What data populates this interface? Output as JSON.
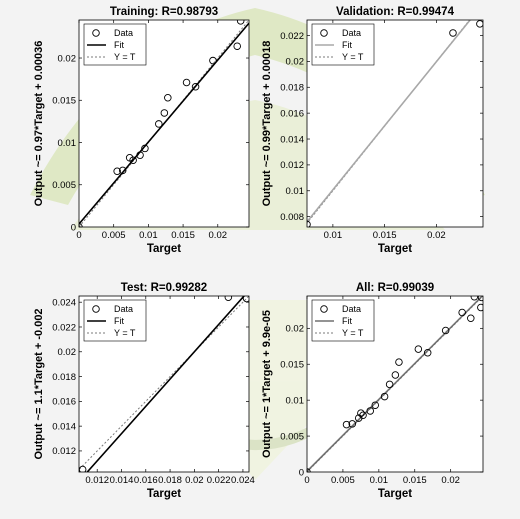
{
  "colors": {
    "figure_bg": "#f3f3f3",
    "axes_bg": "#ffffff",
    "data_marker": "#000000",
    "fit_training": "#000000",
    "fit_validation": "#a8a8a8",
    "fit_test": "#000000",
    "fit_all": "#707070",
    "identity_line": "#7a7a7a",
    "watermark": "#d9e6b8"
  },
  "chart_data": [
    {
      "type": "scatter",
      "title": "Training: R=0.98793",
      "xlabel": "Target",
      "ylabel": "Output ~= 0.97*Target + 0.00036",
      "fit": {
        "slope": 0.97,
        "intercept": 0.00036
      },
      "fit_color": "#000000",
      "xlim": [
        0,
        0.0245
      ],
      "ylim": [
        0,
        0.0245
      ],
      "xticks": [
        0,
        0.005,
        0.01,
        0.015,
        0.02
      ],
      "xtick_labels": [
        "0",
        "0.005",
        "0.01",
        "0.015",
        "0.02"
      ],
      "yticks": [
        0,
        0.005,
        0.01,
        0.015,
        0.02
      ],
      "ytick_labels": [
        "0",
        "0.005",
        "0.01",
        "0.015",
        "0.02"
      ],
      "legend": {
        "position": "top-left",
        "entries": [
          "Data",
          "Fit",
          "Y = T"
        ]
      },
      "grid": false,
      "series": [
        {
          "name": "Data",
          "points": [
            [
              0,
              0
            ],
            [
              0.0055,
              0.0066
            ],
            [
              0.0063,
              0.0067
            ],
            [
              0.0073,
              0.0082
            ],
            [
              0.0078,
              0.0079
            ],
            [
              0.0088,
              0.0085
            ],
            [
              0.0095,
              0.0093
            ],
            [
              0.0115,
              0.0122
            ],
            [
              0.0123,
              0.0135
            ],
            [
              0.0128,
              0.0153
            ],
            [
              0.0155,
              0.0171
            ],
            [
              0.0168,
              0.0166
            ],
            [
              0.0193,
              0.0197
            ],
            [
              0.0228,
              0.0214
            ],
            [
              0.0233,
              0.0244
            ]
          ]
        }
      ]
    },
    {
      "type": "scatter",
      "title": "Validation: R=0.99474",
      "xlabel": "Target",
      "ylabel": "Output ~= 0.99*Target + 0.00018",
      "fit": {
        "slope": 0.99,
        "intercept": 0.00018
      },
      "fit_color": "#a8a8a8",
      "xlim": [
        0.0075,
        0.0245
      ],
      "ylim": [
        0.0072,
        0.0232
      ],
      "xticks": [
        0.01,
        0.015,
        0.02
      ],
      "xtick_labels": [
        "0.01",
        "0.015",
        "0.02"
      ],
      "yticks": [
        0.008,
        0.01,
        0.012,
        0.014,
        0.016,
        0.018,
        0.02,
        0.022
      ],
      "ytick_labels": [
        "0.008",
        "0.01",
        "0.012",
        "0.014",
        "0.016",
        "0.018",
        "0.02",
        "0.022"
      ],
      "legend": {
        "position": "top-left",
        "entries": [
          "Data",
          "Fit",
          "Y = T"
        ]
      },
      "grid": false,
      "series": [
        {
          "name": "Data",
          "points": [
            [
              0.0075,
              0.0074
            ],
            [
              0.0216,
              0.0222
            ],
            [
              0.0242,
              0.0229
            ]
          ]
        }
      ]
    },
    {
      "type": "scatter",
      "title": "Test: R=0.99282",
      "xlabel": "Target",
      "ylabel": "Output ~= 1.1*Target + -0.002",
      "fit": {
        "slope": 1.1,
        "intercept": -0.002
      },
      "fit_color": "#000000",
      "xlim": [
        0.0105,
        0.0245
      ],
      "ylim": [
        0.0103,
        0.0245
      ],
      "xticks": [
        0.012,
        0.014,
        0.016,
        0.018,
        0.02,
        0.022,
        0.024
      ],
      "xtick_labels": [
        "0.012",
        "0.014",
        "0.016",
        "0.018",
        "0.02",
        "0.022",
        "0.024"
      ],
      "yticks": [
        0.012,
        0.014,
        0.016,
        0.018,
        0.02,
        0.022,
        0.024
      ],
      "ytick_labels": [
        "0.012",
        "0.014",
        "0.016",
        "0.018",
        "0.02",
        "0.022",
        "0.024"
      ],
      "legend": {
        "position": "top-left",
        "entries": [
          "Data",
          "Fit",
          "Y = T"
        ]
      },
      "grid": false,
      "series": [
        {
          "name": "Data",
          "points": [
            [
              0.0108,
              0.0105
            ],
            [
              0.0228,
              0.0244
            ],
            [
              0.0243,
              0.0243
            ]
          ]
        }
      ]
    },
    {
      "type": "scatter",
      "title": "All: R=0.99039",
      "xlabel": "Target",
      "ylabel": "Output ~= 1*Target + 9.9e-05",
      "fit": {
        "slope": 1.0,
        "intercept": 9.9e-05
      },
      "fit_color": "#707070",
      "xlim": [
        0,
        0.0245
      ],
      "ylim": [
        0,
        0.0245
      ],
      "xticks": [
        0,
        0.005,
        0.01,
        0.015,
        0.02
      ],
      "xtick_labels": [
        "0",
        "0.005",
        "0.01",
        "0.015",
        "0.02"
      ],
      "yticks": [
        0,
        0.005,
        0.01,
        0.015,
        0.02
      ],
      "ytick_labels": [
        "0",
        "0.005",
        "0.01",
        "0.015",
        "0.02"
      ],
      "legend": {
        "position": "top-left",
        "entries": [
          "Data",
          "Fit",
          "Y = T"
        ]
      },
      "grid": false,
      "series": [
        {
          "name": "Data",
          "points": [
            [
              0,
              0
            ],
            [
              0.0055,
              0.0066
            ],
            [
              0.0063,
              0.0067
            ],
            [
              0.0072,
              0.0075
            ],
            [
              0.0075,
              0.0082
            ],
            [
              0.0078,
              0.0079
            ],
            [
              0.0088,
              0.0085
            ],
            [
              0.0095,
              0.0093
            ],
            [
              0.0108,
              0.0105
            ],
            [
              0.0115,
              0.0122
            ],
            [
              0.0123,
              0.0135
            ],
            [
              0.0128,
              0.0153
            ],
            [
              0.0155,
              0.0171
            ],
            [
              0.0168,
              0.0166
            ],
            [
              0.0193,
              0.0197
            ],
            [
              0.0216,
              0.0222
            ],
            [
              0.0228,
              0.0214
            ],
            [
              0.0233,
              0.0244
            ],
            [
              0.0242,
              0.0229
            ],
            [
              0.0243,
              0.0243
            ]
          ]
        }
      ]
    }
  ]
}
